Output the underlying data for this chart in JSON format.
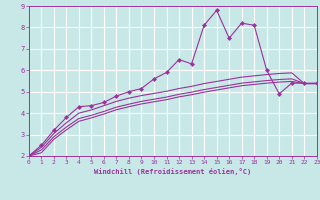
{
  "xlabel": "Windchill (Refroidissement éolien,°C)",
  "background_color": "#c8e8e8",
  "grid_color": "#ffffff",
  "line_color": "#993399",
  "xlim": [
    0,
    23
  ],
  "ylim": [
    2,
    9
  ],
  "xticks": [
    0,
    1,
    2,
    3,
    4,
    5,
    6,
    7,
    8,
    9,
    10,
    11,
    12,
    13,
    14,
    15,
    16,
    17,
    18,
    19,
    20,
    21,
    22,
    23
  ],
  "yticks": [
    2,
    3,
    4,
    5,
    6,
    7,
    8,
    9
  ],
  "curve1_x": [
    0,
    1,
    2,
    3,
    4,
    5,
    6,
    7,
    8,
    9,
    10,
    11,
    12,
    13,
    14,
    15,
    16,
    17,
    18,
    19,
    20,
    21,
    22,
    23
  ],
  "curve1_y": [
    2.0,
    2.5,
    3.2,
    3.8,
    4.3,
    4.35,
    4.5,
    4.8,
    5.0,
    5.15,
    5.6,
    5.9,
    6.5,
    6.3,
    8.1,
    8.8,
    7.5,
    8.2,
    8.1,
    6.0,
    4.9,
    5.4,
    5.4,
    5.4
  ],
  "curve2_x": [
    0,
    1,
    2,
    3,
    4,
    5,
    6,
    7,
    8,
    9,
    10,
    11,
    12,
    13,
    14,
    15,
    16,
    17,
    18,
    19,
    20,
    21,
    22,
    23
  ],
  "curve2_y": [
    2.0,
    2.4,
    3.05,
    3.55,
    4.0,
    4.15,
    4.35,
    4.55,
    4.7,
    4.82,
    4.92,
    5.02,
    5.15,
    5.25,
    5.38,
    5.48,
    5.58,
    5.68,
    5.74,
    5.8,
    5.85,
    5.88,
    5.38,
    5.38
  ],
  "curve3_x": [
    0,
    1,
    2,
    3,
    4,
    5,
    6,
    7,
    8,
    9,
    10,
    11,
    12,
    13,
    14,
    15,
    16,
    17,
    18,
    19,
    20,
    21,
    22,
    23
  ],
  "curve3_y": [
    2.0,
    2.28,
    2.9,
    3.35,
    3.75,
    3.9,
    4.08,
    4.28,
    4.42,
    4.55,
    4.65,
    4.75,
    4.88,
    4.98,
    5.1,
    5.2,
    5.3,
    5.4,
    5.46,
    5.52,
    5.57,
    5.6,
    5.38,
    5.38
  ],
  "curve4_x": [
    0,
    1,
    2,
    3,
    4,
    5,
    6,
    7,
    8,
    9,
    10,
    11,
    12,
    13,
    14,
    15,
    16,
    17,
    18,
    19,
    20,
    21,
    22,
    23
  ],
  "curve4_y": [
    2.0,
    2.15,
    2.78,
    3.22,
    3.62,
    3.78,
    3.96,
    4.16,
    4.3,
    4.43,
    4.53,
    4.63,
    4.76,
    4.86,
    4.98,
    5.08,
    5.18,
    5.28,
    5.34,
    5.4,
    5.45,
    5.48,
    5.38,
    5.38
  ]
}
